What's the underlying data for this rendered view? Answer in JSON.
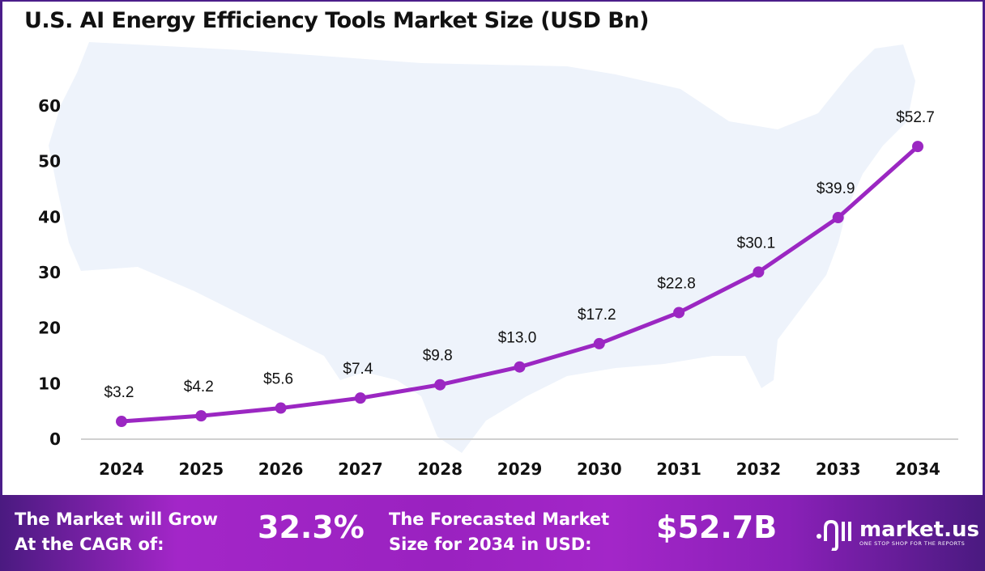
{
  "chart_data": {
    "type": "line",
    "title": "U.S. AI Energy Efficiency Tools Market Size (USD Bn)",
    "categories": [
      "2024",
      "2025",
      "2026",
      "2027",
      "2028",
      "2029",
      "2030",
      "2031",
      "2032",
      "2033",
      "2034"
    ],
    "values": [
      3.2,
      4.2,
      5.6,
      7.4,
      9.8,
      13.0,
      17.2,
      22.8,
      30.1,
      39.9,
      52.7
    ],
    "data_labels": [
      "$3.2",
      "$4.2",
      "$5.6",
      "$7.4",
      "$9.8",
      "$13.0",
      "$17.2",
      "$22.8",
      "$30.1",
      "$39.9",
      "$52.7"
    ],
    "yticks": [
      "0",
      "10",
      "20",
      "30",
      "40",
      "50",
      "60"
    ],
    "ylim": [
      0,
      60
    ],
    "grid": false,
    "line_color": "#9b27c2",
    "background": "US map silhouette"
  },
  "footer": {
    "cagr_label": [
      "The Market will Grow",
      "At the CAGR of:"
    ],
    "cagr_value": "32.3%",
    "forecast_label": [
      "The Forecasted Market",
      "Size for 2034 in USD:"
    ],
    "forecast_value": "$52.7B",
    "brand": "market.us",
    "tagline": "ONE STOP SHOP FOR THE REPORTS"
  }
}
